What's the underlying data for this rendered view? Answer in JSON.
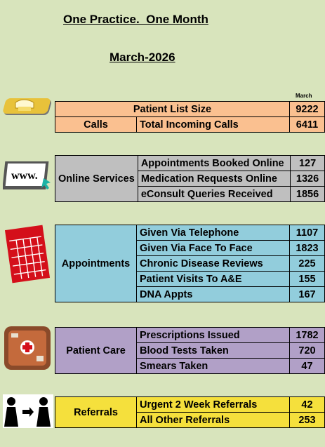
{
  "header": {
    "title": "One Practice.  One Month",
    "subtitle": "March-2026",
    "month_label": "March"
  },
  "colors": {
    "background": "#d8e4bc",
    "list": "#fac090",
    "online": "#bfbfbf",
    "appointments": "#92cddc",
    "care": "#b1a0c7",
    "referrals": "#f5e03c"
  },
  "list": {
    "label": "Patient List Size",
    "value": "9222",
    "calls_label": "Calls",
    "calls_metric": "Total Incoming Calls",
    "calls_value": "6411"
  },
  "online": {
    "label": "Online Services",
    "icon": "www-icon",
    "rows": [
      {
        "name": "Appointments Booked Online",
        "value": "127"
      },
      {
        "name": "Medication Requests Online",
        "value": "1326"
      },
      {
        "name": "eConsult Queries Received",
        "value": "1856"
      }
    ]
  },
  "appointments": {
    "label": "Appointments",
    "icon": "calendar-icon",
    "rows": [
      {
        "name": "Given Via Telephone",
        "value": "1107"
      },
      {
        "name": "Given Via Face To Face",
        "value": "1823"
      },
      {
        "name": "Chronic Disease Reviews",
        "value": "225"
      },
      {
        "name": "Patient Visits To A&E",
        "value": "155"
      },
      {
        "name": "DNA Appts",
        "value": "167"
      }
    ]
  },
  "care": {
    "label": "Patient Care",
    "icon": "medical-kit-icon",
    "rows": [
      {
        "name": "Prescriptions Issued",
        "value": "1782"
      },
      {
        "name": "Blood Tests Taken",
        "value": "720"
      },
      {
        "name": "Smears Taken",
        "value": "47"
      }
    ]
  },
  "referrals": {
    "label": "Referrals",
    "icon": "referral-people-icon",
    "rows": [
      {
        "name": "Urgent 2 Week Referrals",
        "value": "42"
      },
      {
        "name": "All Other Referrals",
        "value": "253"
      }
    ]
  }
}
